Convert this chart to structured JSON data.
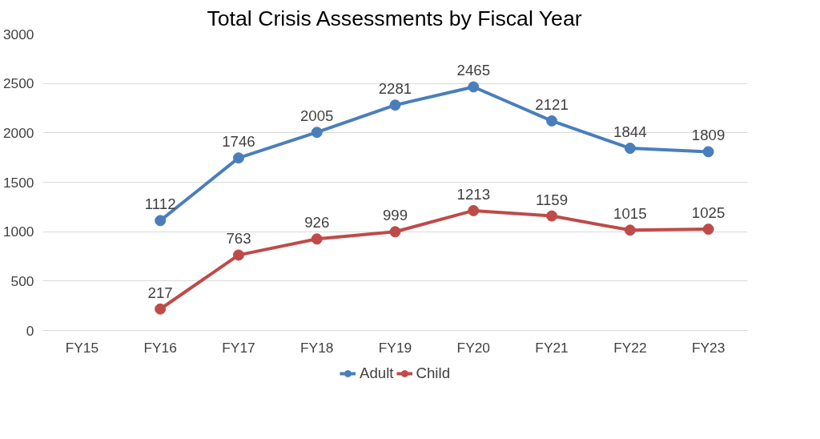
{
  "chart_data": {
    "type": "line",
    "title": "Total Crisis Assessments by Fiscal Year",
    "categories": [
      "FY15",
      "FY16",
      "FY17",
      "FY18",
      "FY19",
      "FY20",
      "FY21",
      "FY22",
      "FY23"
    ],
    "series": [
      {
        "name": "Adult",
        "color": "#4a7ebb",
        "values": [
          null,
          1112,
          1746,
          2005,
          2281,
          2465,
          2121,
          1844,
          1809
        ]
      },
      {
        "name": "Child",
        "color": "#be4b48",
        "values": [
          null,
          217,
          763,
          926,
          999,
          1213,
          1159,
          1015,
          1025
        ]
      }
    ],
    "ylim": [
      0,
      3000
    ],
    "yticks": [
      0,
      500,
      1000,
      1500,
      2000,
      2500,
      3000
    ],
    "grid": "y",
    "legend": "bottom",
    "marker": "circle",
    "line_style": "solid",
    "data_labels": true
  }
}
